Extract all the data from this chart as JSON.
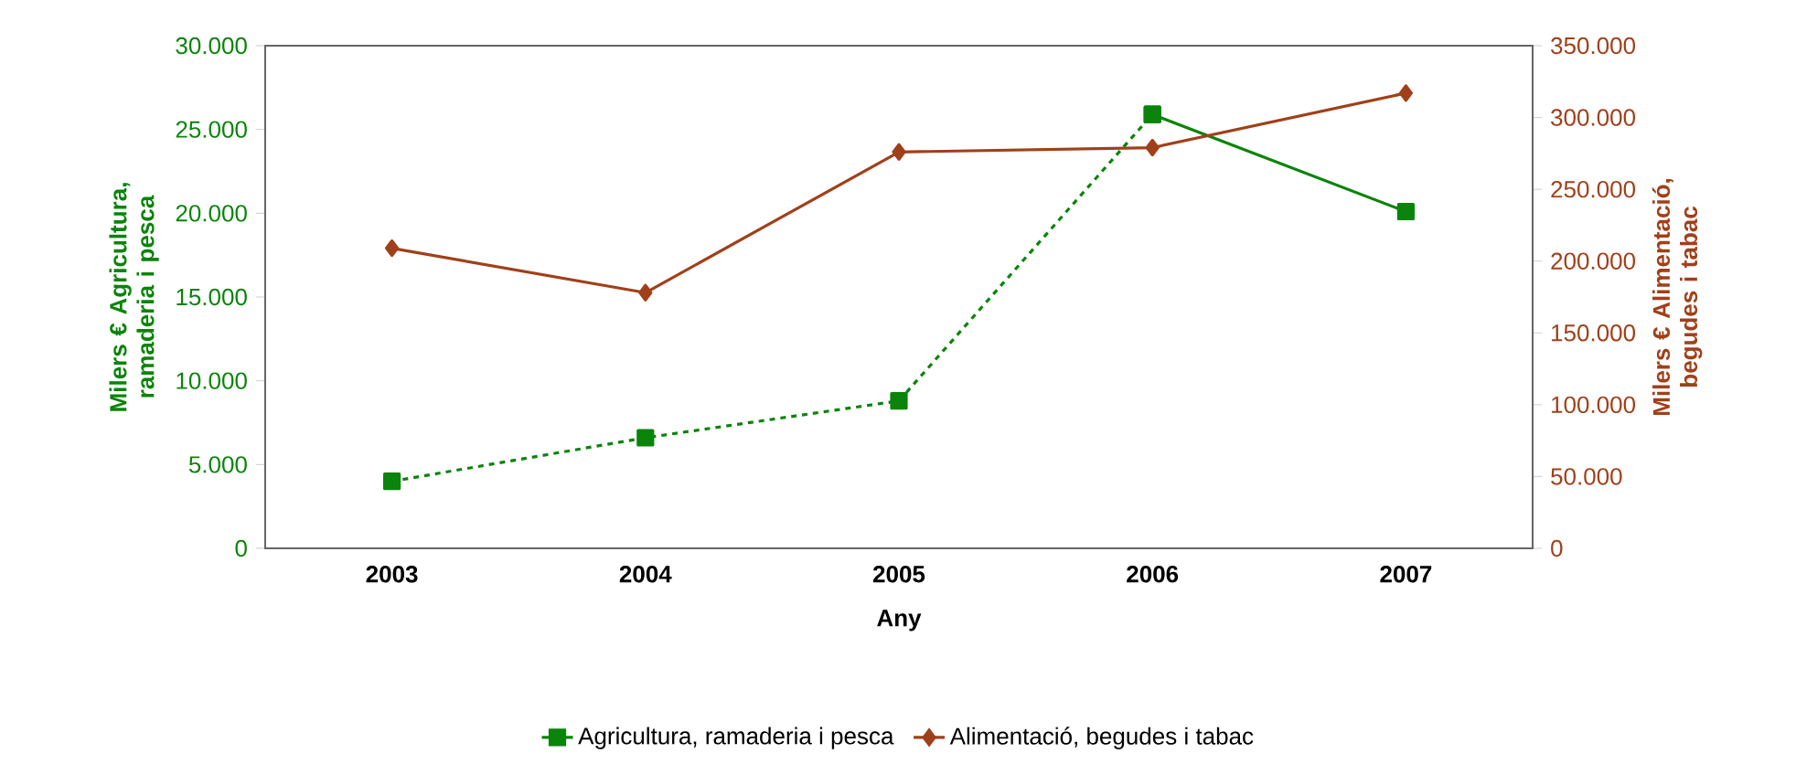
{
  "chart_data": {
    "type": "line",
    "xlabel": "Any",
    "ylabel": "Milers € Agricultura, ramaderia i pesca",
    "y2label": "Milers € Alimentació, begudes i tabac",
    "categories": [
      "2003",
      "2004",
      "2005",
      "2006",
      "2007"
    ],
    "series": [
      {
        "color": "#0a840a",
        "values": [
          4000,
          6600,
          8800,
          25900,
          null
        ],
        "line_style": "dashed",
        "marker": "square"
      },
      {
        "name": "Agricultura, ramaderia i pesca",
        "color": "#0a840a",
        "values": [
          null,
          null,
          null,
          25900,
          20100
        ],
        "line_style": "solid",
        "marker": "square"
      },
      {
        "name": "Alimentació, begudes i tabac",
        "color": "#a0401a",
        "values": [
          209000,
          178000,
          276000,
          279000,
          317000
        ],
        "line_style": "solid",
        "marker": "diamond",
        "axis": "y2"
      }
    ],
    "ylim": [
      0,
      30000
    ],
    "yticks": [
      {
        "value": 0,
        "label": "0"
      },
      {
        "value": 5000,
        "label": "5.000"
      },
      {
        "value": 10000,
        "label": "10.000"
      },
      {
        "value": 15000,
        "label": "15.000"
      },
      {
        "value": 20000,
        "label": "20.000"
      },
      {
        "value": 25000,
        "label": "25.000"
      },
      {
        "value": 30000,
        "label": "30.000"
      }
    ],
    "y2lim": [
      0,
      350000
    ],
    "y2ticks": [
      {
        "value": 0,
        "label": "0"
      },
      {
        "value": 50000,
        "label": "50.000"
      },
      {
        "value": 100000,
        "label": "100.000"
      },
      {
        "value": 150000,
        "label": "150.000"
      },
      {
        "value": 200000,
        "label": "200.000"
      },
      {
        "value": 250000,
        "label": "250.000"
      },
      {
        "value": 300000,
        "label": "300.000"
      },
      {
        "value": 350000,
        "label": "350.000"
      }
    ],
    "legend": "bottom"
  }
}
